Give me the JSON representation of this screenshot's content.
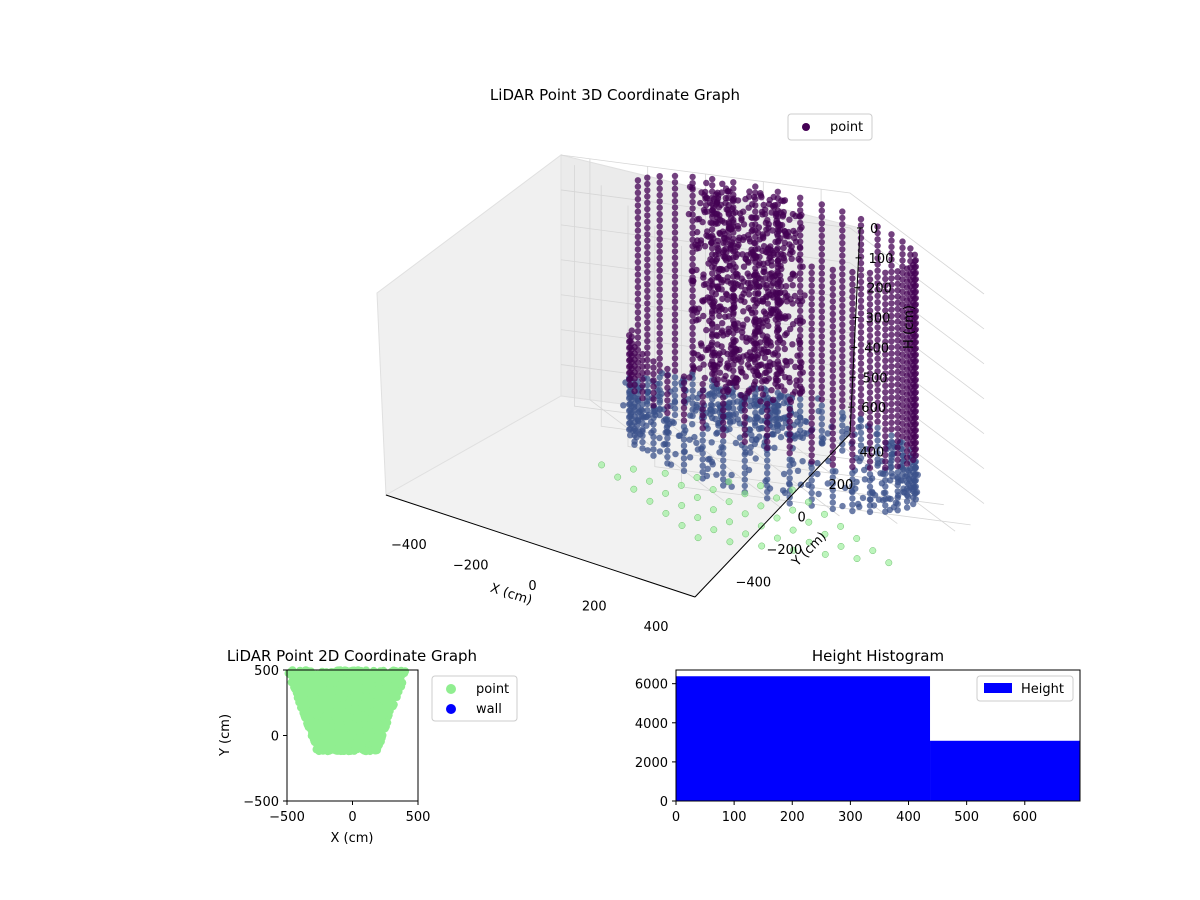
{
  "chart_data": [
    {
      "type": "scatter3d",
      "title": "LiDAR Point 3D Coordinate Graph",
      "xlabel": "X (cm)",
      "ylabel": "Y (cm)",
      "zlabel": "H (cm)",
      "x_ticks": [
        -400,
        -200,
        0,
        200,
        400
      ],
      "y_ticks": [
        -400,
        -200,
        0,
        200,
        400
      ],
      "z_ticks": [
        0,
        100,
        200,
        300,
        400,
        500,
        600
      ],
      "xlim": [
        -500,
        500
      ],
      "ylim": [
        -500,
        500
      ],
      "zlim": [
        0,
        690
      ],
      "z_axis_inverted": true,
      "legend": [
        "point"
      ],
      "legend_position": "upper right",
      "grid": true,
      "colormap": "viridis",
      "colors": {
        "point": "#440154",
        "point_mid": "#3b528b",
        "floor_projection": "#90ee90"
      },
      "description_of_shape": "ring-shaped point cloud of vertical scan columns around a wall; radius ~450 cm, heights 0–690 cm"
    },
    {
      "type": "scatter",
      "title": "LiDAR Point 2D Coordinate Graph",
      "xlabel": "X (cm)",
      "ylabel": "Y (cm)",
      "xlim": [
        -500,
        500
      ],
      "ylim": [
        -500,
        500
      ],
      "x_ticks": [
        -500,
        0,
        500
      ],
      "y_ticks": [
        -500,
        0,
        500
      ],
      "series": [
        {
          "name": "point",
          "color": "#90ee90"
        },
        {
          "name": "wall",
          "color": "#0000ff"
        }
      ],
      "legend_position": "outside right"
    },
    {
      "type": "bar",
      "title": "Height Histogram",
      "xlabel": "",
      "ylabel": "",
      "bins": [
        {
          "from": 0,
          "to": 437,
          "count": 6380
        },
        {
          "from": 437,
          "to": 695,
          "count": 3080
        }
      ],
      "xlim": [
        0,
        695
      ],
      "ylim": [
        0,
        6700
      ],
      "x_ticks": [
        0,
        100,
        200,
        300,
        400,
        500,
        600
      ],
      "y_ticks": [
        0,
        2000,
        4000,
        6000
      ],
      "legend": [
        "Height"
      ],
      "legend_position": "upper right",
      "color": "#0000ff"
    }
  ]
}
